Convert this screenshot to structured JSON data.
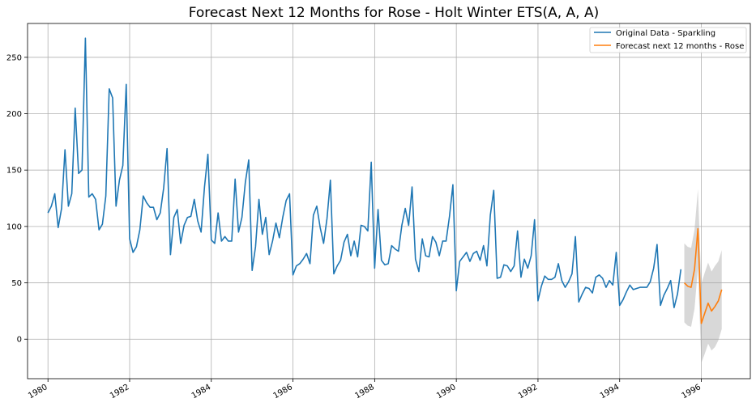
{
  "chart_data": {
    "type": "line",
    "title": "Forecast Next 12 Months for Rose - Holt Winter ETS(A, A, A)",
    "xlabel": "",
    "ylabel": "",
    "xlim": [
      1979.5,
      1997.2
    ],
    "ylim": [
      -35,
      280
    ],
    "x_ticks": [
      {
        "value": 1980,
        "label": "1980"
      },
      {
        "value": 1982,
        "label": "1982"
      },
      {
        "value": 1984,
        "label": "1984"
      },
      {
        "value": 1986,
        "label": "1986"
      },
      {
        "value": 1988,
        "label": "1988"
      },
      {
        "value": 1990,
        "label": "1990"
      },
      {
        "value": 1992,
        "label": "1992"
      },
      {
        "value": 1994,
        "label": "1994"
      },
      {
        "value": 1996,
        "label": "1996"
      }
    ],
    "y_ticks": [
      {
        "value": 0,
        "label": "0"
      },
      {
        "value": 50,
        "label": "50"
      },
      {
        "value": 100,
        "label": "100"
      },
      {
        "value": 150,
        "label": "150"
      },
      {
        "value": 200,
        "label": "200"
      },
      {
        "value": 250,
        "label": "250"
      }
    ],
    "grid": true,
    "legend_position": "top-right",
    "series": [
      {
        "name": "Original Data - Sparkling",
        "color": "#1f77b4",
        "start": 1980.0,
        "step": 0.08333,
        "values": [
          112,
          118,
          129,
          99,
          116,
          168,
          118,
          129,
          205,
          147,
          150,
          267,
          126,
          129,
          124,
          97,
          102,
          127,
          222,
          214,
          118,
          141,
          154,
          226,
          89,
          77,
          82,
          97,
          127,
          121,
          117,
          117,
          106,
          112,
          134,
          169,
          75,
          108,
          115,
          85,
          101,
          108,
          109,
          124,
          105,
          95,
          135,
          164,
          88,
          85,
          112,
          87,
          91,
          87,
          87,
          142,
          95,
          108,
          139,
          159,
          61,
          82,
          124,
          93,
          108,
          75,
          87,
          103,
          90,
          108,
          123,
          129,
          57,
          65,
          67,
          71,
          76,
          67,
          110,
          118,
          99,
          85,
          107,
          141,
          58,
          65,
          70,
          86,
          93,
          74,
          87,
          73,
          101,
          100,
          96,
          157,
          63,
          115,
          70,
          66,
          67,
          83,
          80,
          78,
          101,
          116,
          101,
          135,
          71,
          60,
          89,
          74,
          73,
          91,
          86,
          74,
          87,
          87,
          109,
          137,
          43,
          69,
          73,
          77,
          69,
          76,
          78,
          70,
          83,
          65,
          110,
          132,
          54,
          55,
          66,
          65,
          60,
          65,
          96,
          55,
          71,
          63,
          74,
          106,
          34,
          47,
          56,
          53,
          53,
          55,
          67,
          52,
          46,
          51,
          58,
          91,
          33,
          40,
          46,
          45,
          41,
          55,
          57,
          54,
          46,
          52,
          48,
          77,
          30,
          35,
          42,
          48,
          44,
          45,
          46,
          46,
          46,
          51,
          63,
          84,
          30,
          39,
          45,
          52,
          28,
          40,
          62
        ]
      },
      {
        "name": "Forecast next 12 months - Rose",
        "color": "#ff7f0e",
        "start": 1995.5833,
        "step": 0.08333,
        "values": [
          50,
          47,
          46,
          62,
          98,
          14,
          23,
          32,
          25,
          29,
          34,
          44
        ],
        "lower": [
          15,
          12,
          11,
          27,
          63,
          -21,
          -13,
          -4,
          -10,
          -7,
          -1,
          9
        ],
        "upper": [
          85,
          82,
          81,
          97,
          133,
          49,
          59,
          68,
          60,
          65,
          69,
          79
        ]
      }
    ]
  }
}
